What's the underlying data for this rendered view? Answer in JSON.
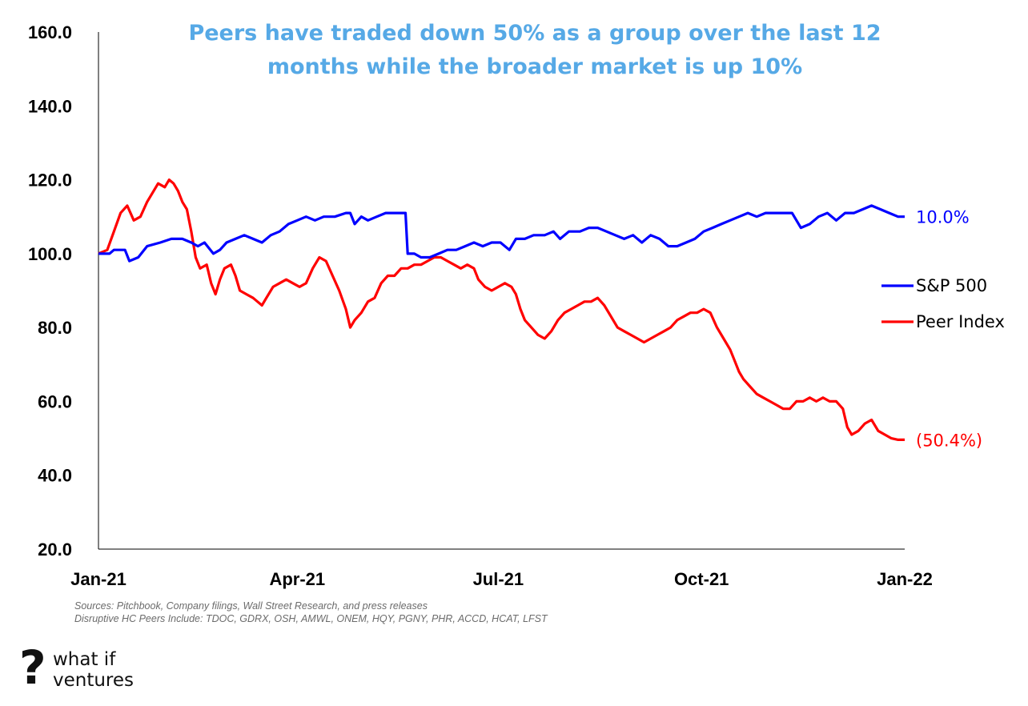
{
  "chart_data": {
    "type": "line",
    "title_lines": [
      "Peers have traded down 50% as a group over the last 12",
      "months while the broader market is up 10%"
    ],
    "xlabel": "",
    "ylabel": "",
    "ylim": [
      20,
      160
    ],
    "y_ticks": [
      "160.0",
      "140.0",
      "120.0",
      "100.0",
      "80.0",
      "60.0",
      "40.0",
      "20.0"
    ],
    "y_tick_values": [
      160,
      140,
      120,
      100,
      80,
      60,
      40,
      20
    ],
    "x_tick_labels": [
      "Jan-21",
      "Apr-21",
      "Jul-21",
      "Oct-21",
      "Jan-22"
    ],
    "x_tick_days": [
      0,
      90,
      181,
      273,
      365
    ],
    "x_range_days": [
      0,
      365
    ],
    "legend_position": "right",
    "series": [
      {
        "name": "S&P 500",
        "color": "#0000ff",
        "end_label": "10.0%",
        "points": [
          [
            0,
            100
          ],
          [
            5,
            100
          ],
          [
            7,
            101
          ],
          [
            12,
            101
          ],
          [
            14,
            98
          ],
          [
            18,
            99
          ],
          [
            22,
            102
          ],
          [
            28,
            103
          ],
          [
            33,
            104
          ],
          [
            38,
            104
          ],
          [
            42,
            103
          ],
          [
            45,
            102
          ],
          [
            48,
            103
          ],
          [
            52,
            100
          ],
          [
            55,
            101
          ],
          [
            58,
            103
          ],
          [
            62,
            104
          ],
          [
            66,
            105
          ],
          [
            70,
            104
          ],
          [
            74,
            103
          ],
          [
            78,
            105
          ],
          [
            82,
            106
          ],
          [
            86,
            108
          ],
          [
            90,
            109
          ],
          [
            94,
            110
          ],
          [
            98,
            109
          ],
          [
            102,
            110
          ],
          [
            107,
            110
          ],
          [
            112,
            111
          ],
          [
            114,
            111
          ],
          [
            116,
            108
          ],
          [
            119,
            110
          ],
          [
            122,
            109
          ],
          [
            126,
            110
          ],
          [
            130,
            111
          ],
          [
            134,
            111
          ],
          [
            137,
            111
          ],
          [
            139,
            111
          ],
          [
            140,
            100
          ],
          [
            143,
            100
          ],
          [
            146,
            99
          ],
          [
            150,
            99
          ],
          [
            154,
            100
          ],
          [
            158,
            101
          ],
          [
            162,
            101
          ],
          [
            166,
            102
          ],
          [
            170,
            103
          ],
          [
            174,
            102
          ],
          [
            178,
            103
          ],
          [
            182,
            103
          ],
          [
            186,
            101
          ],
          [
            189,
            104
          ],
          [
            193,
            104
          ],
          [
            197,
            105
          ],
          [
            202,
            105
          ],
          [
            206,
            106
          ],
          [
            209,
            104
          ],
          [
            213,
            106
          ],
          [
            218,
            106
          ],
          [
            222,
            107
          ],
          [
            226,
            107
          ],
          [
            230,
            106
          ],
          [
            234,
            105
          ],
          [
            238,
            104
          ],
          [
            242,
            105
          ],
          [
            246,
            103
          ],
          [
            250,
            105
          ],
          [
            254,
            104
          ],
          [
            258,
            102
          ],
          [
            262,
            102
          ],
          [
            266,
            103
          ],
          [
            270,
            104
          ],
          [
            274,
            106
          ],
          [
            278,
            107
          ],
          [
            282,
            108
          ],
          [
            286,
            109
          ],
          [
            290,
            110
          ],
          [
            294,
            111
          ],
          [
            298,
            110
          ],
          [
            302,
            111
          ],
          [
            306,
            111
          ],
          [
            310,
            111
          ],
          [
            314,
            111
          ],
          [
            318,
            107
          ],
          [
            322,
            108
          ],
          [
            326,
            110
          ],
          [
            330,
            111
          ],
          [
            334,
            109
          ],
          [
            338,
            111
          ],
          [
            342,
            111
          ],
          [
            346,
            112
          ],
          [
            350,
            113
          ],
          [
            354,
            112
          ],
          [
            358,
            111
          ],
          [
            362,
            110
          ],
          [
            365,
            110
          ]
        ]
      },
      {
        "name": "Peer Index",
        "color": "#ff0000",
        "end_label": "(50.4%)",
        "points": [
          [
            0,
            100
          ],
          [
            4,
            101
          ],
          [
            7,
            106
          ],
          [
            10,
            111
          ],
          [
            13,
            113
          ],
          [
            16,
            109
          ],
          [
            19,
            110
          ],
          [
            22,
            114
          ],
          [
            25,
            117
          ],
          [
            27,
            119
          ],
          [
            30,
            118
          ],
          [
            32,
            120
          ],
          [
            34,
            119
          ],
          [
            36,
            117
          ],
          [
            38,
            114
          ],
          [
            40,
            112
          ],
          [
            42,
            106
          ],
          [
            44,
            99
          ],
          [
            46,
            96
          ],
          [
            49,
            97
          ],
          [
            51,
            92
          ],
          [
            53,
            89
          ],
          [
            55,
            93
          ],
          [
            57,
            96
          ],
          [
            60,
            97
          ],
          [
            62,
            94
          ],
          [
            64,
            90
          ],
          [
            67,
            89
          ],
          [
            70,
            88
          ],
          [
            72,
            87
          ],
          [
            74,
            86
          ],
          [
            76,
            88
          ],
          [
            79,
            91
          ],
          [
            82,
            92
          ],
          [
            85,
            93
          ],
          [
            88,
            92
          ],
          [
            91,
            91
          ],
          [
            94,
            92
          ],
          [
            97,
            96
          ],
          [
            100,
            99
          ],
          [
            103,
            98
          ],
          [
            106,
            94
          ],
          [
            109,
            90
          ],
          [
            112,
            85
          ],
          [
            114,
            80
          ],
          [
            116,
            82
          ],
          [
            119,
            84
          ],
          [
            122,
            87
          ],
          [
            125,
            88
          ],
          [
            128,
            92
          ],
          [
            131,
            94
          ],
          [
            134,
            94
          ],
          [
            137,
            96
          ],
          [
            140,
            96
          ],
          [
            143,
            97
          ],
          [
            146,
            97
          ],
          [
            149,
            98
          ],
          [
            152,
            99
          ],
          [
            155,
            99
          ],
          [
            158,
            98
          ],
          [
            161,
            97
          ],
          [
            164,
            96
          ],
          [
            167,
            97
          ],
          [
            170,
            96
          ],
          [
            172,
            93
          ],
          [
            175,
            91
          ],
          [
            178,
            90
          ],
          [
            181,
            91
          ],
          [
            184,
            92
          ],
          [
            187,
            91
          ],
          [
            189,
            89
          ],
          [
            191,
            85
          ],
          [
            193,
            82
          ],
          [
            196,
            80
          ],
          [
            199,
            78
          ],
          [
            202,
            77
          ],
          [
            205,
            79
          ],
          [
            208,
            82
          ],
          [
            211,
            84
          ],
          [
            214,
            85
          ],
          [
            217,
            86
          ],
          [
            220,
            87
          ],
          [
            223,
            87
          ],
          [
            226,
            88
          ],
          [
            229,
            86
          ],
          [
            232,
            83
          ],
          [
            235,
            80
          ],
          [
            238,
            79
          ],
          [
            241,
            78
          ],
          [
            244,
            77
          ],
          [
            247,
            76
          ],
          [
            250,
            77
          ],
          [
            253,
            78
          ],
          [
            256,
            79
          ],
          [
            259,
            80
          ],
          [
            262,
            82
          ],
          [
            265,
            83
          ],
          [
            268,
            84
          ],
          [
            271,
            84
          ],
          [
            274,
            85
          ],
          [
            277,
            84
          ],
          [
            280,
            80
          ],
          [
            283,
            77
          ],
          [
            286,
            74
          ],
          [
            288,
            71
          ],
          [
            290,
            68
          ],
          [
            292,
            66
          ],
          [
            295,
            64
          ],
          [
            298,
            62
          ],
          [
            301,
            61
          ],
          [
            304,
            60
          ],
          [
            307,
            59
          ],
          [
            310,
            58
          ],
          [
            313,
            58
          ],
          [
            316,
            60
          ],
          [
            319,
            60
          ],
          [
            322,
            61
          ],
          [
            325,
            60
          ],
          [
            328,
            61
          ],
          [
            331,
            60
          ],
          [
            334,
            60
          ],
          [
            337,
            58
          ],
          [
            339,
            53
          ],
          [
            341,
            51
          ],
          [
            344,
            52
          ],
          [
            347,
            54
          ],
          [
            350,
            55
          ],
          [
            353,
            52
          ],
          [
            356,
            51
          ],
          [
            359,
            50
          ],
          [
            362,
            49.6
          ],
          [
            365,
            49.6
          ]
        ]
      }
    ]
  },
  "footer": {
    "sources_line": "Sources: Pitchbook, Company filings, Wall Street Research, and press releases",
    "peers_line": "Disruptive HC Peers Include: TDOC, GDRX, OSH, AMWL, ONEM, HQY, PGNY, PHR, ACCD, HCAT, LFST"
  },
  "logo": {
    "mark": "?",
    "line1": "what if",
    "line2": "ventures"
  }
}
